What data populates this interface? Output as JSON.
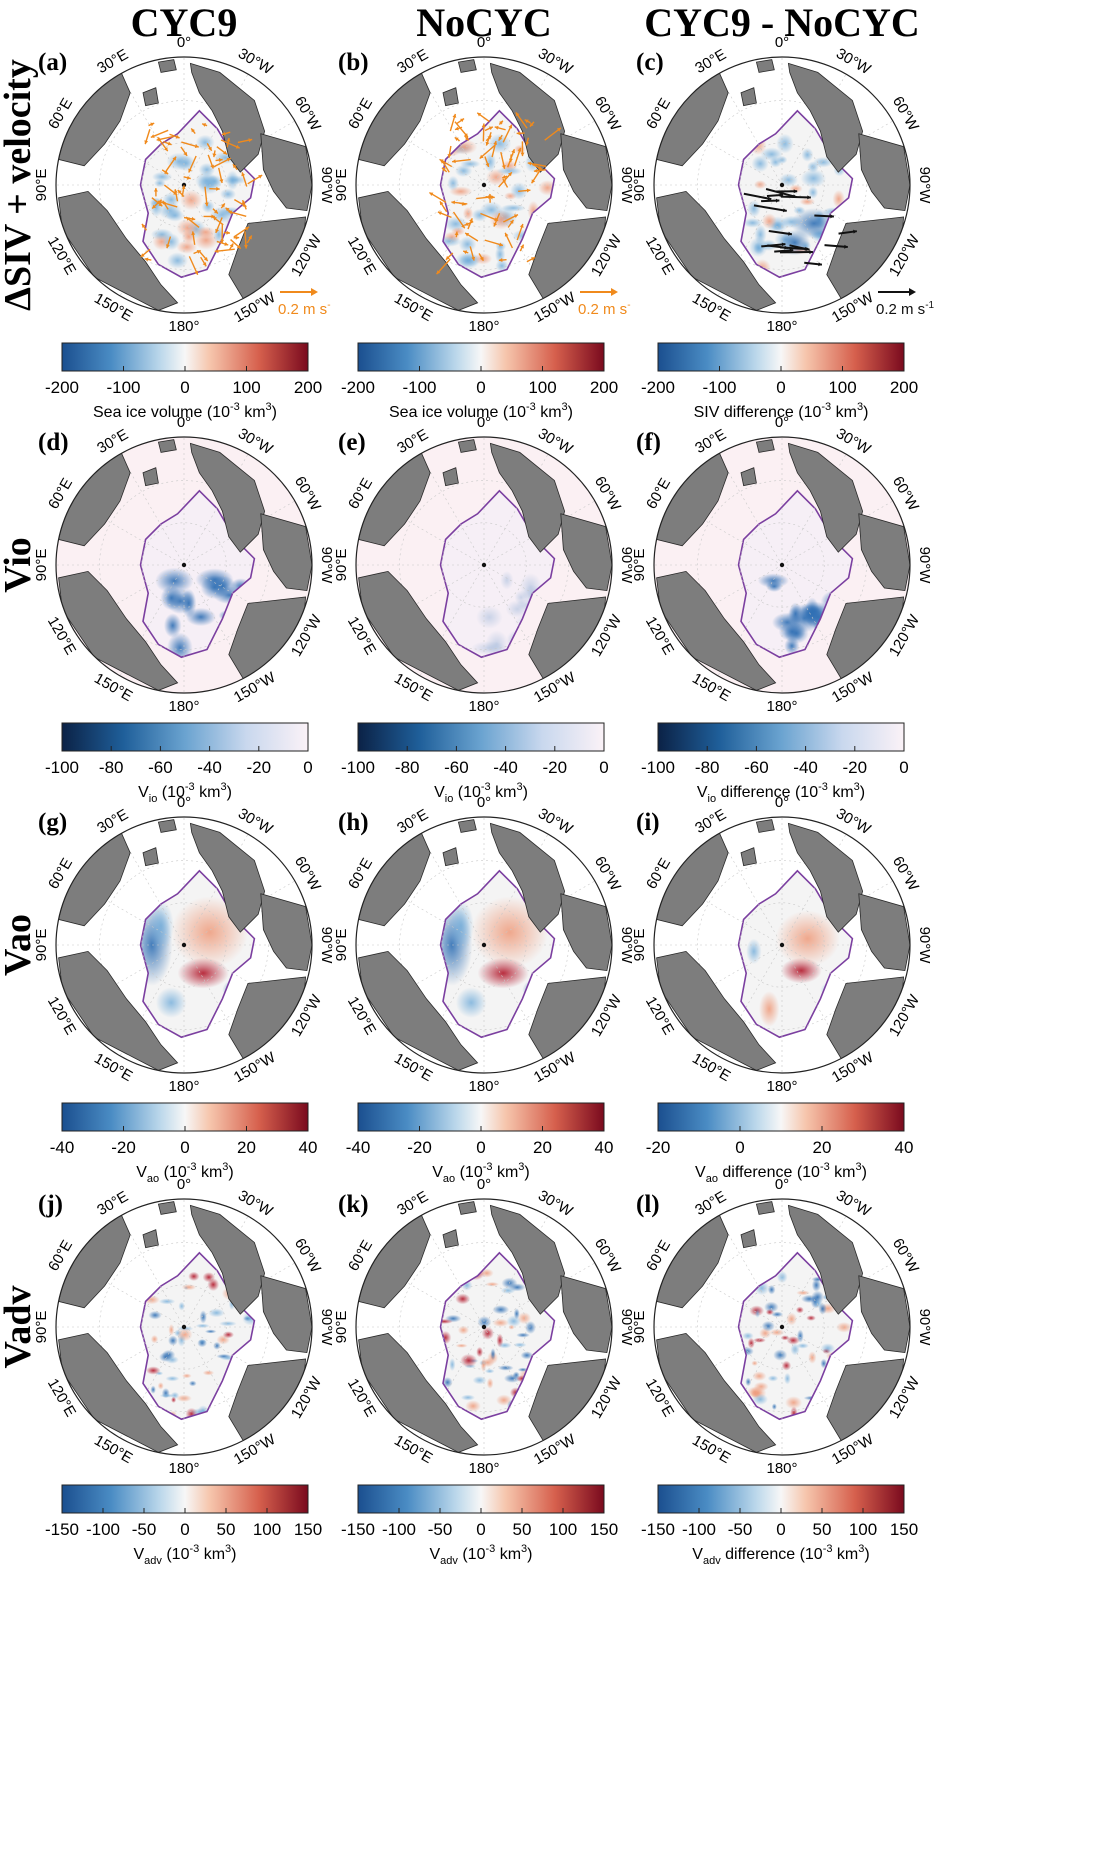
{
  "figure": {
    "columns": [
      {
        "title": "CYC9"
      },
      {
        "title": "NoCYC"
      },
      {
        "title": "CYC9 - NoCYC"
      }
    ],
    "rows": [
      {
        "label": "ΔSIV + velocity",
        "field": "siv",
        "panels": [
          {
            "tag": "(a)",
            "arrow_color": "#f08a1c",
            "reference_text": "0.2 m s",
            "reference_sup": "-"
          },
          {
            "tag": "(b)",
            "arrow_color": "#f08a1c",
            "reference_text": "0.2 m s",
            "reference_sup": "-"
          },
          {
            "tag": "(c)",
            "arrow_color": "#111111",
            "reference_text": "0.2 m s",
            "reference_sup": "-1"
          }
        ],
        "colorbars": [
          {
            "palette": "diverging",
            "ticks": [
              "-200",
              "-100",
              "0",
              "100",
              "200"
            ],
            "label_parts": [
              "Sea ice volume (10",
              "-3",
              " km",
              "3",
              ")"
            ]
          },
          {
            "palette": "diverging",
            "ticks": [
              "-200",
              "-100",
              "0",
              "100",
              "200"
            ],
            "label_parts": [
              "Sea ice volume (10",
              "-3",
              " km",
              "3",
              ")"
            ]
          },
          {
            "palette": "diverging",
            "ticks": [
              "-200",
              "-100",
              "0",
              "100",
              "200"
            ],
            "label_parts": [
              "SIV difference (10",
              "-3",
              " km",
              "3",
              ")"
            ]
          }
        ]
      },
      {
        "label": "Vio",
        "field": "vio",
        "panels": [
          {
            "tag": "(d)"
          },
          {
            "tag": "(e)"
          },
          {
            "tag": "(f)"
          }
        ],
        "colorbars": [
          {
            "palette": "blues",
            "ticks": [
              "-100",
              "-80",
              "-60",
              "-40",
              "-20",
              "0"
            ],
            "label_parts": [
              "V",
              "io",
              " (10",
              "-3",
              " km",
              "3",
              ")"
            ]
          },
          {
            "palette": "blues",
            "ticks": [
              "-100",
              "-80",
              "-60",
              "-40",
              "-20",
              "0"
            ],
            "label_parts": [
              "V",
              "io",
              " (10",
              "-3",
              " km",
              "3",
              ")"
            ]
          },
          {
            "palette": "blues",
            "ticks": [
              "-100",
              "-80",
              "-60",
              "-40",
              "-20",
              "0"
            ],
            "label_parts": [
              "V",
              "io",
              " difference (10",
              "-3",
              " km",
              "3",
              ")"
            ]
          }
        ]
      },
      {
        "label": "Vao",
        "field": "vao",
        "panels": [
          {
            "tag": "(g)"
          },
          {
            "tag": "(h)"
          },
          {
            "tag": "(i)"
          }
        ],
        "colorbars": [
          {
            "palette": "diverging",
            "ticks": [
              "-40",
              "-20",
              "0",
              "20",
              "40"
            ],
            "label_parts": [
              "V",
              "ao",
              " (10",
              "-3",
              " km",
              "3",
              ")"
            ]
          },
          {
            "palette": "diverging",
            "ticks": [
              "-40",
              "-20",
              "0",
              "20",
              "40"
            ],
            "label_parts": [
              "V",
              "ao",
              " (10",
              "-3",
              " km",
              "3",
              ")"
            ]
          },
          {
            "palette": "diverging",
            "ticks": [
              "-20",
              "0",
              "20",
              "40"
            ],
            "label_parts": [
              "V",
              "ao",
              " difference (10",
              "-3",
              " km",
              "3",
              ")"
            ]
          }
        ]
      },
      {
        "label": "Vadv",
        "field": "vadv",
        "panels": [
          {
            "tag": "(j)"
          },
          {
            "tag": "(k)"
          },
          {
            "tag": "(l)"
          }
        ],
        "colorbars": [
          {
            "palette": "diverging",
            "ticks": [
              "-150",
              "-100",
              "-50",
              "0",
              "50",
              "100",
              "150"
            ],
            "label_parts": [
              "V",
              "adv",
              " (10",
              "-3",
              " km",
              "3",
              ")"
            ]
          },
          {
            "palette": "diverging",
            "ticks": [
              "-150",
              "-100",
              "-50",
              "0",
              "50",
              "100",
              "150"
            ],
            "label_parts": [
              "V",
              "adv",
              " (10",
              "-3",
              " km",
              "3",
              ")"
            ]
          },
          {
            "palette": "diverging",
            "ticks": [
              "-150",
              "-100",
              "-50",
              "0",
              "50",
              "100",
              "150"
            ],
            "label_parts": [
              "V",
              "adv",
              " difference (10",
              "-3",
              " km",
              "3",
              ")"
            ]
          }
        ]
      }
    ],
    "longitude_labels": [
      "0°",
      "30°W",
      "60°W",
      "90°W",
      "120°W",
      "150°W",
      "180°",
      "150°E",
      "120°E",
      "90°E",
      "60°E",
      "30°E"
    ],
    "colors": {
      "land": "#7d7d7d",
      "coast": "#2a2a2a",
      "ice_edge": "#7b3fa0",
      "background": "#ffffff",
      "grid": "#c8c8c8",
      "pink_background": "#fbf0f3"
    }
  }
}
